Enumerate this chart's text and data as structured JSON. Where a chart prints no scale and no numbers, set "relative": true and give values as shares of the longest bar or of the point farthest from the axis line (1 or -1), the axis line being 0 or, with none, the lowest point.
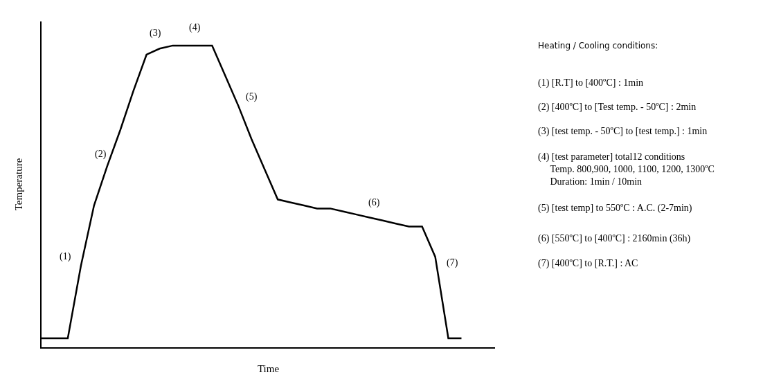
{
  "chart_data": {
    "type": "line",
    "relative": true,
    "xlabel": "Time",
    "ylabel": "Temperature",
    "categories": [
      null,
      null,
      null,
      null,
      null,
      null,
      null,
      null,
      null,
      null,
      null,
      null,
      null,
      null,
      null,
      null,
      null,
      null,
      null,
      null,
      null,
      null,
      null,
      null,
      null,
      null,
      null,
      null,
      null,
      null,
      null,
      null,
      null
    ],
    "series": [
      {
        "color": "#000000",
        "values": [
          0.03,
          0.03,
          0.03,
          0.27,
          0.47,
          0.6,
          0.72,
          0.85,
          0.97,
          0.99,
          1,
          1,
          1,
          1,
          0.9,
          0.8,
          0.69,
          0.59,
          0.49,
          0.48,
          0.47,
          0.46,
          0.46,
          0.45,
          0.44,
          0.43,
          0.42,
          0.41,
          0.4,
          0.4,
          0.3,
          0.03,
          0.03
        ]
      }
    ],
    "marker": "none",
    "line_style": "solid",
    "annotations": [
      "(1)",
      "(2)",
      "(3)",
      "(4)",
      "(5)",
      "(6)",
      "(7)",
      "Heating / Cooling conditions:",
      "(1) [R.T] to [400ºC] : 1min",
      "(2) [400ºC] to [Test temp. - 50ºC] : 2min",
      "(3) [test temp. - 50ºC] to [test temp.] : 1min",
      "(4) [test parameter] total12 conditions\n     Temp. 800,900, 1000, 1100, 1200, 1300ºC\n     Duration: 1min / 10min",
      "(5) [test temp] to 550ºC : A.C. (2-7min)",
      "(6) [550ºC] to [400ºC] : 2160min (36h)",
      "(7) [400ºC] to [R.T.] : AC"
    ]
  }
}
